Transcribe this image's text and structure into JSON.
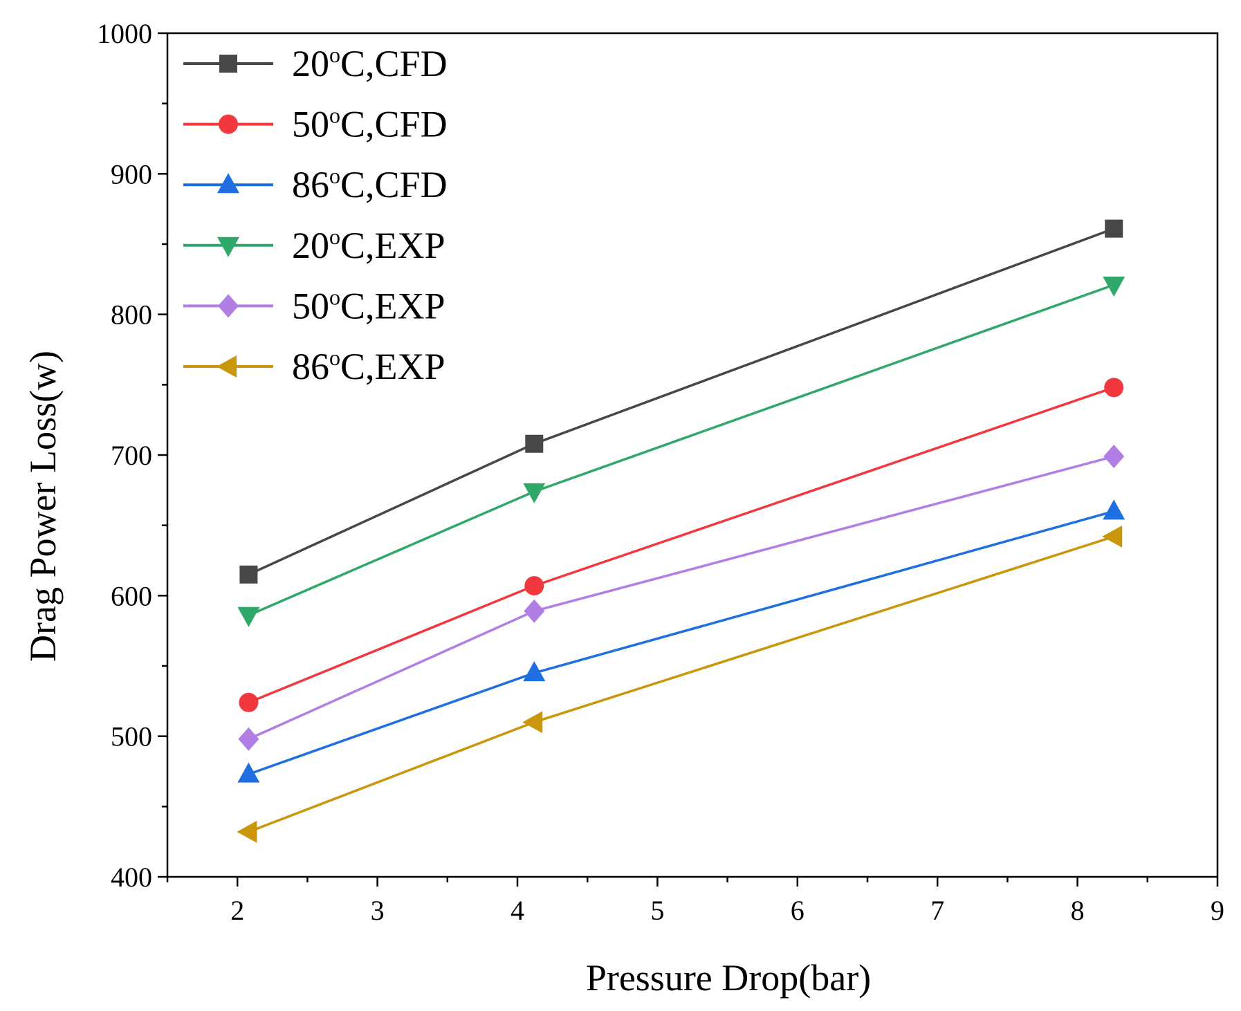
{
  "chart_data": {
    "type": "line",
    "title": "",
    "xlabel": "Pressure Drop(bar)",
    "ylabel": "Drag Power Loss(w)",
    "xlim": [
      1.5,
      9
    ],
    "ylim": [
      400,
      1000
    ],
    "xticks": [
      2,
      3,
      4,
      5,
      6,
      7,
      8,
      9
    ],
    "yticks": [
      400,
      500,
      600,
      700,
      800,
      900,
      1000
    ],
    "grid": false,
    "legend_position": "top-left",
    "x": [
      2.08,
      4.12,
      8.26
    ],
    "series": [
      {
        "name": "20ºC,CFD",
        "label_num": "20",
        "label_deg": "o",
        "label_rest": "C,CFD",
        "marker": "square",
        "color": "#474747",
        "values": [
          615,
          708,
          861
        ]
      },
      {
        "name": "50ºC,CFD",
        "label_num": "50",
        "label_deg": "o",
        "label_rest": "C,CFD",
        "marker": "circle",
        "color": "#f0383e",
        "values": [
          524,
          607,
          748
        ]
      },
      {
        "name": "86ºC,CFD",
        "label_num": "86",
        "label_deg": "o",
        "label_rest": "C,CFD",
        "marker": "triangle-up",
        "color": "#1f6fe0",
        "values": [
          473,
          545,
          660
        ]
      },
      {
        "name": "20ºC,EXP",
        "label_num": "20",
        "label_deg": "o",
        "label_rest": "C,EXP",
        "marker": "triangle-down",
        "color": "#2fa86a",
        "values": [
          586,
          674,
          821
        ]
      },
      {
        "name": "50ºC,EXP",
        "label_num": "50",
        "label_deg": "o",
        "label_rest": "C,EXP",
        "marker": "diamond",
        "color": "#b07ee4",
        "values": [
          498,
          589,
          699
        ]
      },
      {
        "name": "86ºC,EXP",
        "label_num": "86",
        "label_deg": "o",
        "label_rest": "C,EXP",
        "marker": "triangle-left",
        "color": "#c9960c",
        "values": [
          432,
          510,
          642
        ]
      }
    ]
  }
}
